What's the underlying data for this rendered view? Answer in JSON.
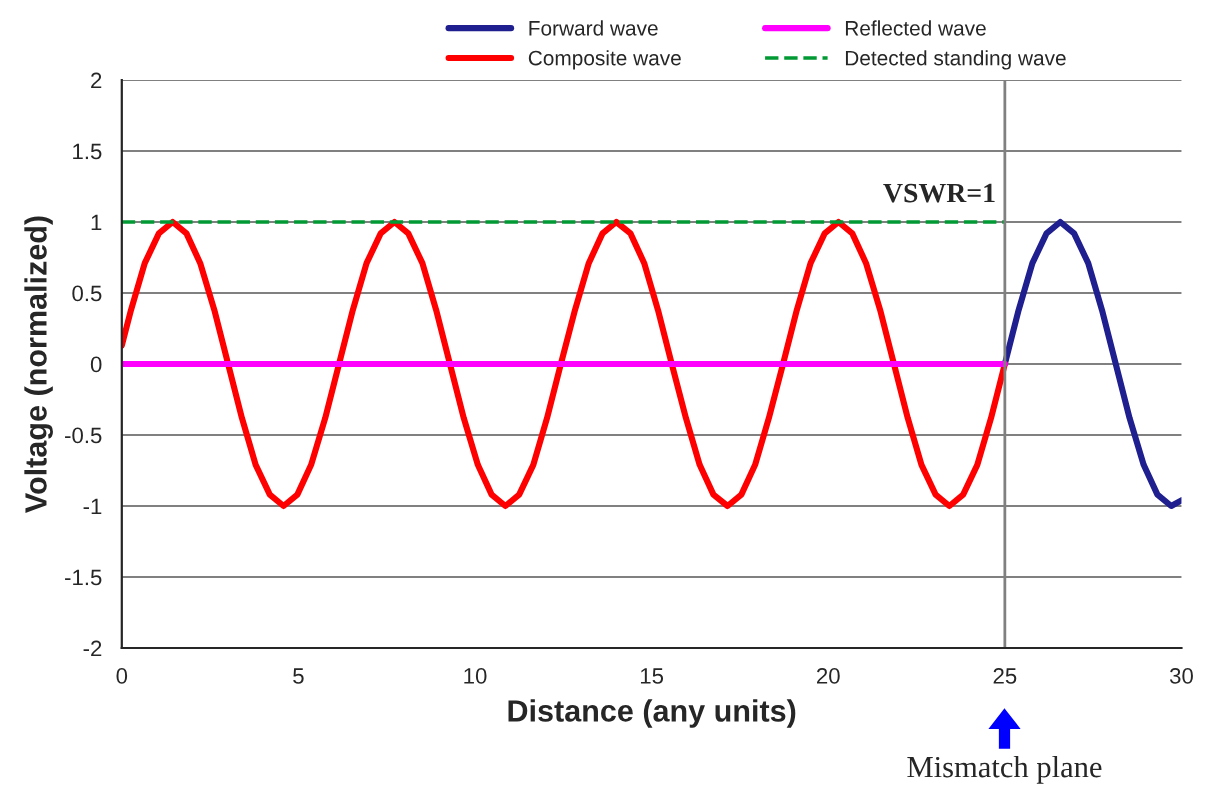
{
  "chart_data": {
    "type": "line",
    "xlabel": "Distance (any units)",
    "ylabel": "Voltage (normalized)",
    "xlim": [
      0,
      30
    ],
    "xticks": [
      0,
      5,
      10,
      15,
      20,
      25,
      30
    ],
    "ylim": [
      -2,
      2
    ],
    "yticks": [
      -2,
      -1.5,
      -1,
      -0.5,
      0,
      0.5,
      1,
      1.5,
      2
    ],
    "grid": "y",
    "legend": "top",
    "marker": "none",
    "series": [
      {
        "name": "Forward wave",
        "color": "#1f1f8f",
        "line_style": "solid",
        "x": [
          25.0,
          25.39,
          25.78,
          26.18,
          26.57,
          26.96,
          27.36,
          27.75,
          28.14,
          28.53,
          28.93,
          29.32,
          29.71,
          30.0
        ],
        "values": [
          0,
          0.38,
          0.71,
          0.92,
          1,
          0.92,
          0.71,
          0.38,
          0,
          -0.38,
          -0.71,
          -0.92,
          -1,
          -0.96
        ]
      },
      {
        "name": "Composite wave",
        "color": "#ff0000",
        "line_style": "solid",
        "x": [
          0,
          0.26,
          0.65,
          1.05,
          1.44,
          1.83,
          2.22,
          2.62,
          3.01,
          3.4,
          3.79,
          4.19,
          4.58,
          4.97,
          5.36,
          5.76,
          6.15,
          6.54,
          6.93,
          7.33,
          7.72,
          8.11,
          8.51,
          8.9,
          9.29,
          9.68,
          10.08,
          10.47,
          10.86,
          11.25,
          11.65,
          12.04,
          12.43,
          12.83,
          13.22,
          13.61,
          14.0,
          14.4,
          14.79,
          15.18,
          15.57,
          15.97,
          16.36,
          16.75,
          17.15,
          17.54,
          17.93,
          18.32,
          18.72,
          19.11,
          19.5,
          19.9,
          20.29,
          20.68,
          21.07,
          21.47,
          21.86,
          22.25,
          22.64,
          23.04,
          23.43,
          23.82,
          24.22,
          24.61,
          25.0
        ],
        "values": [
          0.13,
          0.38,
          0.71,
          0.92,
          1,
          0.92,
          0.71,
          0.38,
          0,
          -0.38,
          -0.71,
          -0.92,
          -1,
          -0.92,
          -0.71,
          -0.38,
          0,
          0.38,
          0.71,
          0.92,
          1,
          0.92,
          0.71,
          0.38,
          0,
          -0.38,
          -0.71,
          -0.92,
          -1,
          -0.92,
          -0.71,
          -0.38,
          0,
          0.38,
          0.71,
          0.92,
          1,
          0.92,
          0.71,
          0.38,
          0,
          -0.38,
          -0.71,
          -0.92,
          -1,
          -0.92,
          -0.71,
          -0.38,
          0,
          0.38,
          0.71,
          0.92,
          1,
          0.92,
          0.71,
          0.38,
          0,
          -0.38,
          -0.71,
          -0.92,
          -1,
          -0.92,
          -0.71,
          -0.38,
          0
        ]
      },
      {
        "name": "Reflected wave",
        "color": "#ff00ff",
        "line_style": "solid",
        "x": [
          0,
          25
        ],
        "values": [
          0,
          0
        ]
      },
      {
        "name": "Detected standing wave",
        "color": "#009933",
        "line_style": "dashed",
        "x": [
          0,
          25
        ],
        "values": [
          1,
          1
        ]
      }
    ],
    "ref_lines": [
      {
        "axis": "x",
        "value": 25,
        "color": "#808080"
      }
    ],
    "annotations": [
      "VSWR=1",
      "Mismatch plane"
    ]
  }
}
